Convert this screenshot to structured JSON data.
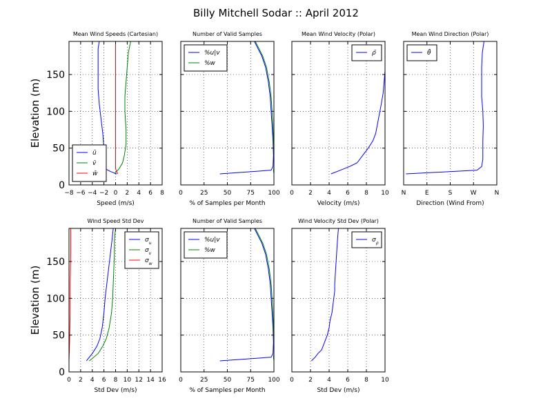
{
  "figure": {
    "title": "Billy Mitchell Sodar :: April 2012"
  },
  "chart_data": [
    {
      "type": "line",
      "title": "Mean Wind Speeds (Cartesian)",
      "xlabel": "Speed (m/s)",
      "ylabel": "Elevation (m)",
      "xlim": [
        -8,
        8
      ],
      "ylim": [
        0,
        195
      ],
      "xticks": [
        -8,
        -6,
        -4,
        -2,
        0,
        2,
        4,
        6,
        8
      ],
      "xtick_labels": [
        "−8",
        "−6",
        "−4",
        "−2",
        "0",
        "2",
        "4",
        "6",
        "8"
      ],
      "yticks": [
        0,
        50,
        100,
        150
      ],
      "ytick_labels": [
        "0",
        "50",
        "100",
        "150"
      ],
      "grid": true,
      "legend_position": "lower-left",
      "series": [
        {
          "name": "ū",
          "color": "#0000ff",
          "points": [
            [
              0.2,
              15
            ],
            [
              -0.8,
              18
            ],
            [
              -1.8,
              22
            ],
            [
              -2.0,
              30
            ],
            [
              -2.0,
              40
            ],
            [
              -2.0,
              50
            ],
            [
              -2.2,
              70
            ],
            [
              -2.5,
              90
            ],
            [
              -2.8,
              110
            ],
            [
              -3.0,
              130
            ],
            [
              -3.0,
              150
            ],
            [
              -3.0,
              170
            ],
            [
              -3.0,
              185
            ],
            [
              -2.8,
              195
            ]
          ]
        },
        {
          "name": "v̄",
          "color": "#008000",
          "points": [
            [
              -0.2,
              15
            ],
            [
              0.6,
              22
            ],
            [
              1.2,
              30
            ],
            [
              1.5,
              40
            ],
            [
              1.8,
              55
            ],
            [
              1.8,
              75
            ],
            [
              1.6,
              100
            ],
            [
              1.6,
              120
            ],
            [
              1.8,
              140
            ],
            [
              2.0,
              160
            ],
            [
              2.2,
              180
            ],
            [
              2.6,
              195
            ]
          ]
        },
        {
          "name": "w̄",
          "color": "#ff0000",
          "points": [
            [
              0.0,
              195
            ],
            [
              0.0,
              150
            ],
            [
              0.0,
              100
            ],
            [
              0.0,
              50
            ],
            [
              0.0,
              22
            ],
            [
              0.2,
              18
            ],
            [
              0.4,
              15
            ]
          ]
        }
      ]
    },
    {
      "type": "line",
      "title": "Number of Valid Samples",
      "xlabel": "% of Samples per Month",
      "xlim": [
        0,
        100
      ],
      "ylim": [
        0,
        195
      ],
      "xticks": [
        0,
        25,
        50,
        75,
        100
      ],
      "xtick_labels": [
        "0",
        "25",
        "50",
        "75",
        "100"
      ],
      "grid": true,
      "legend_position": "upper-left",
      "series": [
        {
          "name": "%u|v",
          "color": "#0000ff",
          "points": [
            [
              42,
              15
            ],
            [
              97,
              20
            ],
            [
              99,
              25
            ],
            [
              99.5,
              40
            ],
            [
              99,
              60
            ],
            [
              98,
              80
            ],
            [
              97,
              100
            ],
            [
              96,
              120
            ],
            [
              94,
              140
            ],
            [
              91,
              160
            ],
            [
              87,
              175
            ],
            [
              83,
              185
            ],
            [
              79,
              195
            ]
          ]
        },
        {
          "name": "%w",
          "color": "#008000",
          "points": [
            [
              100,
              15
            ],
            [
              99.5,
              20
            ],
            [
              100,
              25
            ],
            [
              100,
              40
            ],
            [
              99.5,
              60
            ],
            [
              99,
              80
            ],
            [
              98,
              100
            ],
            [
              97,
              120
            ],
            [
              95,
              140
            ],
            [
              92,
              160
            ],
            [
              88,
              175
            ],
            [
              84,
              185
            ],
            [
              80,
              195
            ]
          ]
        }
      ]
    },
    {
      "type": "line",
      "title": "Mean Wind Velocity (Polar)",
      "xlabel": "Velocity (m/s)",
      "xlim": [
        0,
        10
      ],
      "ylim": [
        0,
        195
      ],
      "xticks": [
        0,
        2,
        4,
        6,
        8,
        10
      ],
      "xtick_labels": [
        "0",
        "2",
        "4",
        "6",
        "8",
        "10"
      ],
      "grid": true,
      "legend_position": "upper-right",
      "series": [
        {
          "name": "ρ̄",
          "color": "#0000ff",
          "points": [
            [
              4.2,
              15
            ],
            [
              5.2,
              20
            ],
            [
              6.2,
              25
            ],
            [
              7.0,
              30
            ],
            [
              7.6,
              40
            ],
            [
              8.2,
              50
            ],
            [
              8.7,
              60
            ],
            [
              9.0,
              70
            ],
            [
              9.3,
              90
            ],
            [
              9.6,
              110
            ],
            [
              9.8,
              125
            ],
            [
              9.9,
              140
            ],
            [
              10,
              155
            ],
            [
              10,
              170
            ]
          ]
        }
      ]
    },
    {
      "type": "line",
      "title": "Mean Wind Direction (Polar)",
      "xlabel": "Direction (Wind From)",
      "xlim": [
        0,
        4
      ],
      "ylim": [
        0,
        195
      ],
      "xticks": [
        0,
        1,
        2,
        3,
        4
      ],
      "xtick_labels": [
        "N",
        "E",
        "S",
        "W",
        "N"
      ],
      "grid": true,
      "legend_position": "upper-left",
      "series": [
        {
          "name": "θ̄",
          "color": "#0000ff",
          "points": [
            [
              0.1,
              15
            ],
            [
              3.15,
              20
            ],
            [
              3.35,
              25
            ],
            [
              3.4,
              35
            ],
            [
              3.4,
              60
            ],
            [
              3.42,
              80
            ],
            [
              3.4,
              100
            ],
            [
              3.35,
              120
            ],
            [
              3.35,
              140
            ],
            [
              3.35,
              160
            ],
            [
              3.38,
              180
            ],
            [
              3.45,
              195
            ]
          ]
        }
      ]
    },
    {
      "type": "line",
      "title": "Wind Speed Std Dev",
      "xlabel": "Std Dev (m/s)",
      "ylabel": "Elevation (m)",
      "xlim": [
        0,
        16
      ],
      "ylim": [
        0,
        195
      ],
      "xticks": [
        0,
        2,
        4,
        6,
        8,
        10,
        12,
        14,
        16
      ],
      "xtick_labels": [
        "0",
        "2",
        "4",
        "6",
        "8",
        "10",
        "12",
        "14",
        "16"
      ],
      "yticks": [
        0,
        50,
        100,
        150
      ],
      "ytick_labels": [
        "0",
        "50",
        "100",
        "150"
      ],
      "grid": true,
      "legend_position": "upper-right",
      "series": [
        {
          "name": "σ_u",
          "color": "#0000ff",
          "points": [
            [
              3.0,
              15
            ],
            [
              4.0,
              25
            ],
            [
              4.8,
              35
            ],
            [
              5.3,
              45
            ],
            [
              5.7,
              60
            ],
            [
              6.0,
              80
            ],
            [
              6.2,
              100
            ],
            [
              6.5,
              120
            ],
            [
              6.8,
              140
            ],
            [
              7.1,
              160
            ],
            [
              7.4,
              180
            ],
            [
              7.6,
              195
            ]
          ]
        },
        {
          "name": "σ_v",
          "color": "#008000",
          "points": [
            [
              3.5,
              15
            ],
            [
              5.0,
              25
            ],
            [
              5.8,
              35
            ],
            [
              6.4,
              45
            ],
            [
              6.9,
              60
            ],
            [
              7.3,
              80
            ],
            [
              7.5,
              100
            ],
            [
              7.6,
              120
            ],
            [
              7.7,
              140
            ],
            [
              7.8,
              160
            ],
            [
              7.8,
              180
            ],
            [
              8.0,
              195
            ]
          ]
        },
        {
          "name": "σ_w",
          "color": "#ff0000",
          "points": [
            [
              0.0,
              15
            ],
            [
              0.1,
              40
            ],
            [
              0.2,
              80
            ],
            [
              0.2,
              120
            ],
            [
              0.3,
              160
            ],
            [
              0.3,
              195
            ]
          ]
        }
      ]
    },
    {
      "type": "line",
      "title": "Number of Valid Samples",
      "xlabel": "% of Samples per Month",
      "xlim": [
        0,
        100
      ],
      "ylim": [
        0,
        195
      ],
      "xticks": [
        0,
        25,
        50,
        75,
        100
      ],
      "xtick_labels": [
        "0",
        "25",
        "50",
        "75",
        "100"
      ],
      "grid": true,
      "legend_position": "upper-left",
      "series": [
        {
          "name": "%u|v",
          "color": "#0000ff",
          "points": [
            [
              42,
              15
            ],
            [
              97,
              20
            ],
            [
              99,
              25
            ],
            [
              99.5,
              40
            ],
            [
              99,
              60
            ],
            [
              98,
              80
            ],
            [
              97,
              100
            ],
            [
              96,
              120
            ],
            [
              94,
              140
            ],
            [
              91,
              160
            ],
            [
              87,
              175
            ],
            [
              83,
              185
            ],
            [
              79,
              195
            ]
          ]
        },
        {
          "name": "%w",
          "color": "#008000",
          "points": [
            [
              100,
              15
            ],
            [
              99.5,
              20
            ],
            [
              100,
              25
            ],
            [
              100,
              40
            ],
            [
              99.5,
              60
            ],
            [
              99,
              80
            ],
            [
              98,
              100
            ],
            [
              97,
              120
            ],
            [
              95,
              140
            ],
            [
              92,
              160
            ],
            [
              88,
              175
            ],
            [
              84,
              185
            ],
            [
              80,
              195
            ]
          ]
        }
      ]
    },
    {
      "type": "line",
      "title": "Wind Velocity Std Dev (Polar)",
      "xlabel": "Std Dev (m/s)",
      "xlim": [
        0,
        10
      ],
      "ylim": [
        0,
        195
      ],
      "xticks": [
        0,
        2,
        4,
        6,
        8,
        10
      ],
      "xtick_labels": [
        "0",
        "2",
        "4",
        "6",
        "8",
        "10"
      ],
      "grid": true,
      "legend_position": "upper-right",
      "series": [
        {
          "name": "σ_ρ",
          "color": "#0000ff",
          "points": [
            [
              2.1,
              15
            ],
            [
              2.5,
              20
            ],
            [
              2.8,
              25
            ],
            [
              3.2,
              30
            ],
            [
              3.5,
              40
            ],
            [
              3.8,
              50
            ],
            [
              4.0,
              60
            ],
            [
              4.1,
              70
            ],
            [
              4.3,
              80
            ],
            [
              4.4,
              90
            ],
            [
              4.5,
              100
            ],
            [
              4.6,
              110
            ],
            [
              4.6,
              120
            ],
            [
              4.7,
              140
            ],
            [
              4.8,
              160
            ],
            [
              4.9,
              180
            ],
            [
              5.0,
              195
            ]
          ]
        }
      ]
    }
  ]
}
